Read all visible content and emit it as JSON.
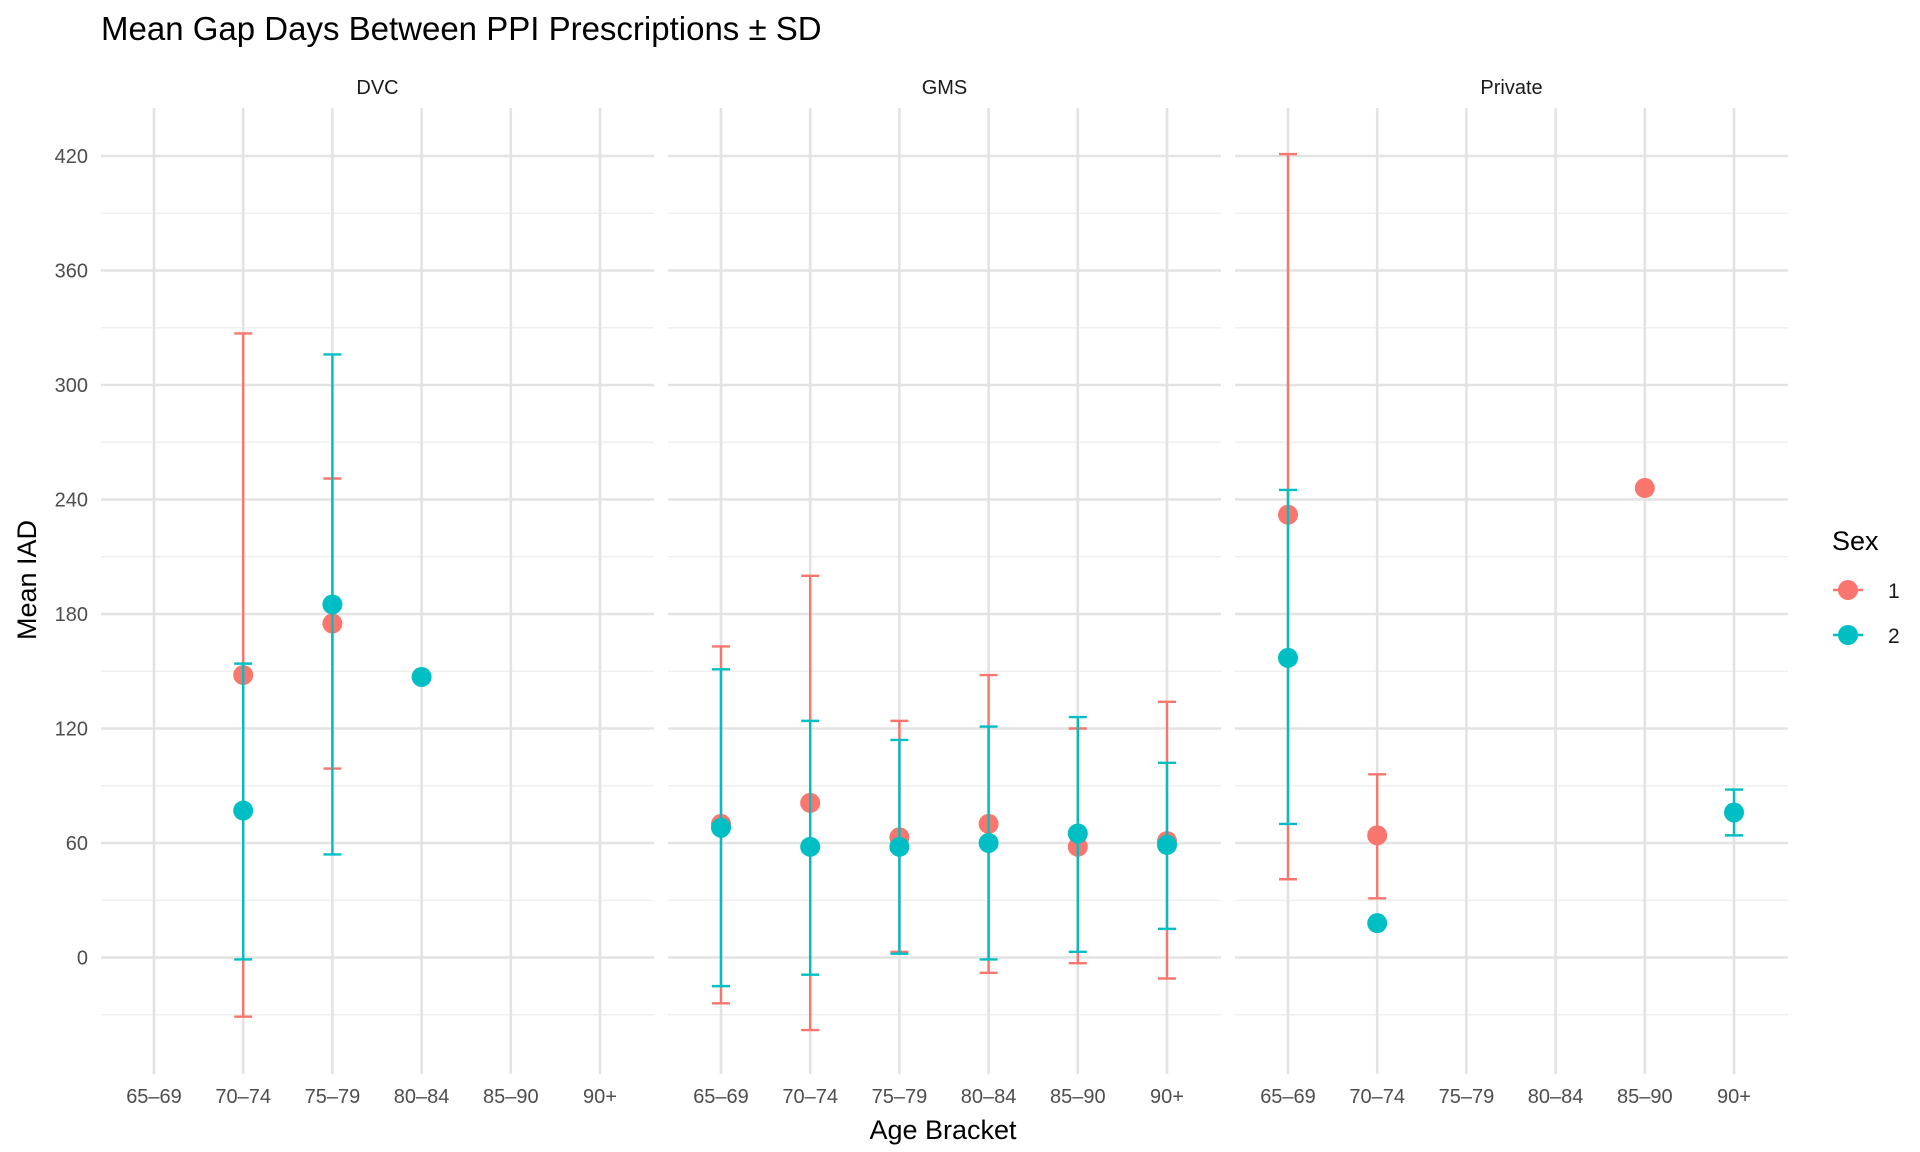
{
  "chart_data": {
    "type": "scatter",
    "title": "Mean Gap Days Between PPI Prescriptions ± SD",
    "xlabel": "Age Bracket",
    "ylabel": "Mean IAD",
    "categories": [
      "65–69",
      "70–74",
      "75–79",
      "80–84",
      "85–90",
      "90+"
    ],
    "y_ticks": [
      0,
      60,
      120,
      180,
      240,
      300,
      360,
      420
    ],
    "ylim": [
      -60,
      445
    ],
    "grid": true,
    "legend": {
      "title": "Sex",
      "placement": "right",
      "entries": [
        {
          "label": "1",
          "color": "#F8766D"
        },
        {
          "label": "2",
          "color": "#00BFC4"
        }
      ]
    },
    "panels": [
      {
        "name": "DVC",
        "series": [
          {
            "name": "1",
            "color": "#F8766D",
            "points": [
              {
                "x": "70–74",
                "y": 148,
                "lo": -31,
                "hi": 327
              },
              {
                "x": "75–79",
                "y": 175,
                "lo": 99,
                "hi": 251
              }
            ]
          },
          {
            "name": "2",
            "color": "#00BFC4",
            "points": [
              {
                "x": "70–74",
                "y": 77,
                "lo": -1,
                "hi": 154
              },
              {
                "x": "75–79",
                "y": 185,
                "lo": 54,
                "hi": 316
              },
              {
                "x": "80–84",
                "y": 147
              }
            ]
          }
        ]
      },
      {
        "name": "GMS",
        "series": [
          {
            "name": "1",
            "color": "#F8766D",
            "points": [
              {
                "x": "65–69",
                "y": 70,
                "lo": -24,
                "hi": 163
              },
              {
                "x": "70–74",
                "y": 81,
                "lo": -38,
                "hi": 200
              },
              {
                "x": "75–79",
                "y": 63,
                "lo": 3,
                "hi": 124
              },
              {
                "x": "80–84",
                "y": 70,
                "lo": -8,
                "hi": 148
              },
              {
                "x": "85–90",
                "y": 58,
                "lo": -3,
                "hi": 120
              },
              {
                "x": "90+",
                "y": 61,
                "lo": -11,
                "hi": 134
              }
            ]
          },
          {
            "name": "2",
            "color": "#00BFC4",
            "points": [
              {
                "x": "65–69",
                "y": 68,
                "lo": -15,
                "hi": 151
              },
              {
                "x": "70–74",
                "y": 58,
                "lo": -9,
                "hi": 124
              },
              {
                "x": "75–79",
                "y": 58,
                "lo": 2,
                "hi": 114
              },
              {
                "x": "80–84",
                "y": 60,
                "lo": -1,
                "hi": 121
              },
              {
                "x": "85–90",
                "y": 65,
                "lo": 3,
                "hi": 126
              },
              {
                "x": "90+",
                "y": 59,
                "lo": 15,
                "hi": 102
              }
            ]
          }
        ]
      },
      {
        "name": "Private",
        "series": [
          {
            "name": "1",
            "color": "#F8766D",
            "points": [
              {
                "x": "65–69",
                "y": 232,
                "lo": 41,
                "hi": 421
              },
              {
                "x": "70–74",
                "y": 64,
                "lo": 31,
                "hi": 96
              },
              {
                "x": "85–90",
                "y": 246
              }
            ]
          },
          {
            "name": "2",
            "color": "#00BFC4",
            "points": [
              {
                "x": "65–69",
                "y": 157,
                "lo": 70,
                "hi": 245
              },
              {
                "x": "70–74",
                "y": 18
              },
              {
                "x": "90+",
                "y": 76,
                "lo": 64,
                "hi": 88
              }
            ]
          }
        ]
      }
    ]
  }
}
